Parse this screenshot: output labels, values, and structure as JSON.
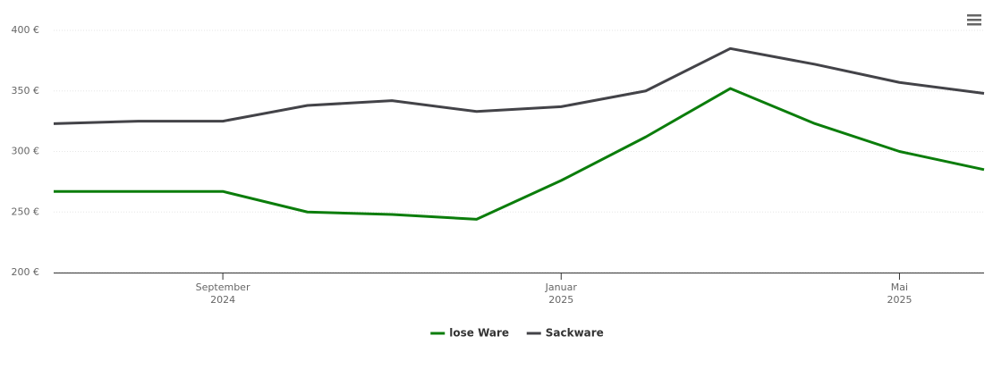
{
  "chart_data": {
    "type": "line",
    "x": [
      "2024-07",
      "2024-08",
      "2024-09",
      "2024-10",
      "2024-11",
      "2024-12",
      "2025-01",
      "2025-02",
      "2025-03",
      "2025-04",
      "2025-05",
      "2025-06"
    ],
    "series": [
      {
        "name": "lose Ware",
        "color": "#0b7d0b",
        "values": [
          267,
          267,
          267,
          250,
          248,
          244,
          276,
          312,
          352,
          323,
          300,
          285
        ]
      },
      {
        "name": "Sackware",
        "color": "#434348",
        "values": [
          323,
          325,
          325,
          338,
          342,
          333,
          337,
          350,
          385,
          372,
          357,
          348
        ]
      }
    ],
    "xlim": [
      "2024-07",
      "2025-06"
    ],
    "xticks": [
      {
        "value": "2024-09",
        "label": [
          "September",
          "2024"
        ]
      },
      {
        "value": "2025-01",
        "label": [
          "Januar",
          "2025"
        ]
      },
      {
        "value": "2025-05",
        "label": [
          "Mai",
          "2025"
        ]
      }
    ],
    "ylim": [
      200,
      400
    ],
    "yticks": [
      {
        "value": 200,
        "label": "200 €"
      },
      {
        "value": 250,
        "label": "250 €"
      },
      {
        "value": 300,
        "label": "300 €"
      },
      {
        "value": 350,
        "label": "350 €"
      },
      {
        "value": 400,
        "label": "400 €"
      }
    ],
    "grid": true,
    "legend": "bottom"
  }
}
